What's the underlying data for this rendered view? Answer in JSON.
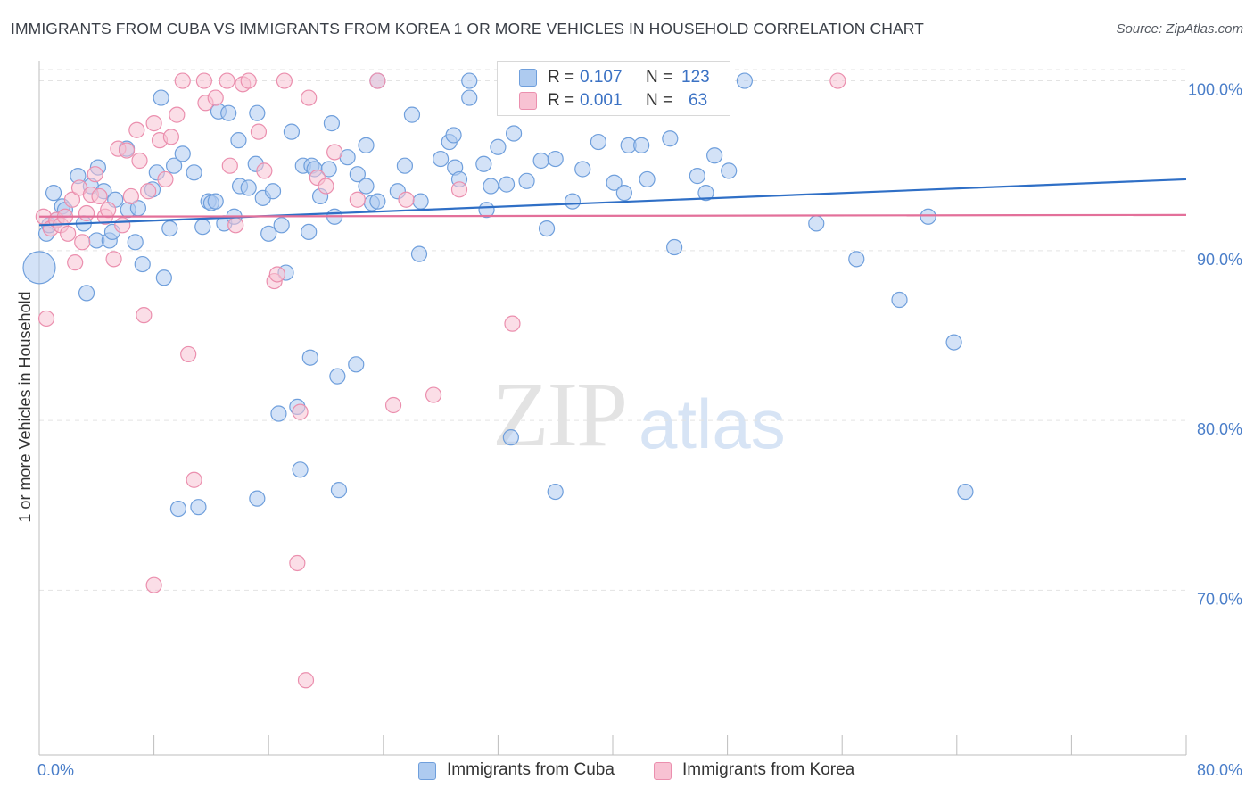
{
  "title": "IMMIGRANTS FROM CUBA VS IMMIGRANTS FROM KOREA 1 OR MORE VEHICLES IN HOUSEHOLD CORRELATION CHART",
  "source": "Source: ZipAtlas.com",
  "watermark": {
    "zip": "ZIP",
    "atlas": "atlas"
  },
  "legend": {
    "cuba": {
      "r_label": "R =",
      "r_value": "0.107",
      "n_label": "N =",
      "n_value": "123"
    },
    "korea": {
      "r_label": "R =",
      "r_value": "0.001",
      "n_label": "N =",
      "n_value": "63"
    }
  },
  "colors": {
    "cuba_fill": "#aecbf0",
    "cuba_stroke": "#6f9fdc",
    "cuba_line": "#2f6fc6",
    "korea_fill": "#f8c2d3",
    "korea_stroke": "#eb8fae",
    "korea_line": "#e3709a",
    "grid": "#e3e3e3",
    "axis_text": "#4a7ec9"
  },
  "chart_data": {
    "type": "scatter",
    "title": "IMMIGRANTS FROM CUBA VS IMMIGRANTS FROM KOREA 1 OR MORE VEHICLES IN HOUSEHOLD CORRELATION CHART",
    "xlabel": "",
    "ylabel": "1 or more Vehicles in Household",
    "xlim": [
      0,
      80
    ],
    "ylim": [
      60.3,
      101.5
    ],
    "x_tick_labels": [
      "0.0%",
      "80.0%"
    ],
    "y_ticks": [
      70,
      80,
      90,
      100
    ],
    "y_tick_labels": [
      "70.0%",
      "80.0%",
      "90.0%",
      "100.0%"
    ],
    "series": [
      {
        "name": "Immigrants from Cuba",
        "r": 0.107,
        "n": 123,
        "trend": [
          [
            0,
            91.5
          ],
          [
            80,
            94.2
          ]
        ],
        "points": [
          [
            0.5,
            91.0
          ],
          [
            0.7,
            91.5
          ],
          [
            1.0,
            93.4
          ],
          [
            1.2,
            91.8
          ],
          [
            1.6,
            92.6
          ],
          [
            1.8,
            92.4
          ],
          [
            2.7,
            94.4
          ],
          [
            3.1,
            91.6
          ],
          [
            3.3,
            87.5
          ],
          [
            3.6,
            93.8
          ],
          [
            4.0,
            90.6
          ],
          [
            4.1,
            94.9
          ],
          [
            4.5,
            93.5
          ],
          [
            4.9,
            90.6
          ],
          [
            5.1,
            91.1
          ],
          [
            5.3,
            93.0
          ],
          [
            6.1,
            96.0
          ],
          [
            6.2,
            92.4
          ],
          [
            6.7,
            90.5
          ],
          [
            6.9,
            92.5
          ],
          [
            7.2,
            89.2
          ],
          [
            7.9,
            93.6
          ],
          [
            8.2,
            94.6
          ],
          [
            8.5,
            99.0
          ],
          [
            8.7,
            88.4
          ],
          [
            9.1,
            91.3
          ],
          [
            9.4,
            95.0
          ],
          [
            10.0,
            95.7
          ],
          [
            10.8,
            94.6
          ],
          [
            11.4,
            91.4
          ],
          [
            11.8,
            92.9
          ],
          [
            12.0,
            92.8
          ],
          [
            12.3,
            92.9
          ],
          [
            12.5,
            98.2
          ],
          [
            12.9,
            91.6
          ],
          [
            13.2,
            98.1
          ],
          [
            13.6,
            92.0
          ],
          [
            13.9,
            96.5
          ],
          [
            14.0,
            93.8
          ],
          [
            14.6,
            93.7
          ],
          [
            15.1,
            95.1
          ],
          [
            15.2,
            98.1
          ],
          [
            15.6,
            93.1
          ],
          [
            16.0,
            91.0
          ],
          [
            16.3,
            93.5
          ],
          [
            16.9,
            91.5
          ],
          [
            17.2,
            88.7
          ],
          [
            17.6,
            97.0
          ],
          [
            18.4,
            95.0
          ],
          [
            18.8,
            91.1
          ],
          [
            19.0,
            95.0
          ],
          [
            19.2,
            94.8
          ],
          [
            19.6,
            93.2
          ],
          [
            20.2,
            94.8
          ],
          [
            20.4,
            97.5
          ],
          [
            20.6,
            92.0
          ],
          [
            21.5,
            95.5
          ],
          [
            22.2,
            94.5
          ],
          [
            22.8,
            96.2
          ],
          [
            22.8,
            93.8
          ],
          [
            23.2,
            92.8
          ],
          [
            23.6,
            92.9
          ],
          [
            23.6,
            100.0
          ],
          [
            25.0,
            93.5
          ],
          [
            25.5,
            95.0
          ],
          [
            26.0,
            98.0
          ],
          [
            26.5,
            89.8
          ],
          [
            26.6,
            92.9
          ],
          [
            28.0,
            95.4
          ],
          [
            28.6,
            96.4
          ],
          [
            28.9,
            96.8
          ],
          [
            29.0,
            94.9
          ],
          [
            29.3,
            94.2
          ],
          [
            30.0,
            100.0
          ],
          [
            30.0,
            99.0
          ],
          [
            31.0,
            95.1
          ],
          [
            31.2,
            92.4
          ],
          [
            31.5,
            93.8
          ],
          [
            32.0,
            96.1
          ],
          [
            32.6,
            93.9
          ],
          [
            33.1,
            96.9
          ],
          [
            34.0,
            94.1
          ],
          [
            35.0,
            95.3
          ],
          [
            35.4,
            91.3
          ],
          [
            36.0,
            95.4
          ],
          [
            37.2,
            92.9
          ],
          [
            37.9,
            94.8
          ],
          [
            39.0,
            96.4
          ],
          [
            40.1,
            94.0
          ],
          [
            40.8,
            93.4
          ],
          [
            41.1,
            96.2
          ],
          [
            42.0,
            96.2
          ],
          [
            42.4,
            94.2
          ],
          [
            44.0,
            96.6
          ],
          [
            44.3,
            90.2
          ],
          [
            45.9,
            94.4
          ],
          [
            46.5,
            93.4
          ],
          [
            47.1,
            95.6
          ],
          [
            48.1,
            94.7
          ],
          [
            49.2,
            100.0
          ],
          [
            54.2,
            91.6
          ],
          [
            57.0,
            89.5
          ],
          [
            60.0,
            87.1
          ],
          [
            62.0,
            92.0
          ],
          [
            63.8,
            84.6
          ],
          [
            64.6,
            75.8
          ],
          [
            18.9,
            83.7
          ],
          [
            20.8,
            82.6
          ],
          [
            22.1,
            83.3
          ],
          [
            18.0,
            80.8
          ],
          [
            16.7,
            80.4
          ],
          [
            18.2,
            77.1
          ],
          [
            20.9,
            75.9
          ],
          [
            15.2,
            75.4
          ],
          [
            9.7,
            74.8
          ],
          [
            11.1,
            74.9
          ],
          [
            32.9,
            79.0
          ],
          [
            36.0,
            75.8
          ],
          [
            0,
            89.0
          ]
        ]
      },
      {
        "name": "Immigrants from Korea",
        "r": 0.001,
        "n": 63,
        "trend": [
          [
            0,
            92.0
          ],
          [
            80,
            92.1
          ]
        ],
        "points": [
          [
            0.3,
            92.0
          ],
          [
            0.5,
            86.0
          ],
          [
            0.8,
            91.3
          ],
          [
            1.2,
            91.8
          ],
          [
            1.5,
            91.5
          ],
          [
            1.8,
            92.0
          ],
          [
            2.0,
            91.0
          ],
          [
            2.3,
            93.0
          ],
          [
            2.5,
            89.3
          ],
          [
            2.8,
            93.7
          ],
          [
            3.0,
            90.5
          ],
          [
            3.3,
            92.2
          ],
          [
            3.6,
            93.3
          ],
          [
            3.9,
            94.5
          ],
          [
            4.2,
            93.2
          ],
          [
            4.6,
            92.0
          ],
          [
            4.8,
            92.4
          ],
          [
            5.2,
            89.5
          ],
          [
            5.5,
            96.0
          ],
          [
            5.8,
            91.5
          ],
          [
            6.1,
            95.9
          ],
          [
            6.4,
            93.2
          ],
          [
            6.8,
            97.1
          ],
          [
            7.0,
            95.3
          ],
          [
            7.3,
            86.2
          ],
          [
            7.6,
            93.5
          ],
          [
            8.0,
            97.5
          ],
          [
            8.4,
            96.5
          ],
          [
            8.8,
            94.2
          ],
          [
            9.2,
            96.7
          ],
          [
            9.6,
            98.0
          ],
          [
            10.0,
            100.0
          ],
          [
            10.4,
            83.9
          ],
          [
            10.8,
            76.5
          ],
          [
            11.5,
            100.0
          ],
          [
            11.6,
            98.7
          ],
          [
            12.3,
            99.0
          ],
          [
            13.1,
            100.0
          ],
          [
            13.3,
            95.0
          ],
          [
            13.7,
            91.5
          ],
          [
            14.2,
            99.8
          ],
          [
            14.6,
            100.0
          ],
          [
            15.3,
            97.0
          ],
          [
            15.7,
            94.7
          ],
          [
            16.4,
            88.2
          ],
          [
            16.6,
            88.6
          ],
          [
            17.1,
            100.0
          ],
          [
            18.2,
            80.5
          ],
          [
            18.8,
            99.0
          ],
          [
            19.4,
            94.3
          ],
          [
            20.0,
            93.8
          ],
          [
            20.6,
            95.8
          ],
          [
            22.2,
            93.0
          ],
          [
            23.6,
            100.0
          ],
          [
            24.7,
            80.9
          ],
          [
            25.6,
            93.0
          ],
          [
            27.5,
            81.5
          ],
          [
            29.3,
            93.6
          ],
          [
            33.0,
            85.7
          ],
          [
            18.0,
            71.6
          ],
          [
            18.6,
            64.7
          ],
          [
            8.0,
            70.3
          ],
          [
            55.7,
            100.0
          ]
        ]
      }
    ]
  }
}
